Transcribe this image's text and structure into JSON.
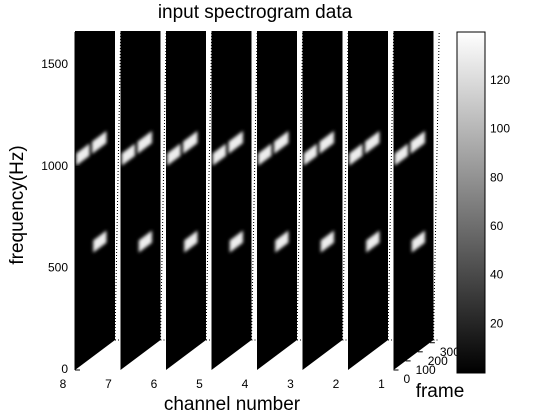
{
  "chart_data": {
    "type": "slice",
    "title": "input spectrogram data",
    "ylabel": "frequency(Hz)",
    "xlabel": "channel number",
    "zlabel": "frame",
    "categories": [
      "8",
      "7",
      "6",
      "5",
      "4",
      "3",
      "2",
      "1"
    ],
    "ylim": [
      0,
      1600
    ],
    "yticks": [
      0,
      500,
      1000,
      1500
    ],
    "zlim": [
      0,
      330
    ],
    "zticks": [
      0,
      100,
      200,
      300
    ],
    "clim": [
      0,
      140
    ],
    "cticks": [
      20,
      40,
      60,
      80,
      100,
      120
    ],
    "blobs": [
      {
        "frame": [
          10,
          120
        ],
        "frequency": 1030,
        "level": 130
      },
      {
        "frame": [
          140,
          260
        ],
        "frequency": 1030,
        "level": 130
      },
      {
        "frame": [
          150,
          260
        ],
        "frequency": 540,
        "level": 130
      }
    ]
  }
}
